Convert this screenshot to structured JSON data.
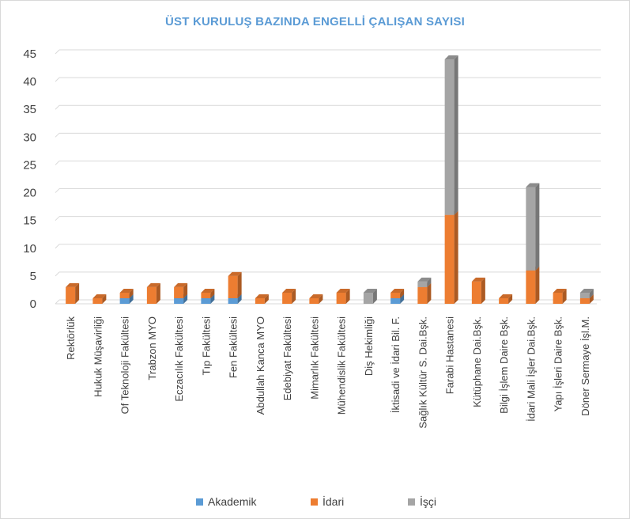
{
  "chart_data": {
    "type": "bar",
    "stacked": true,
    "title": "ÜST KURULUŞ BAZINDA ENGELLİ ÇALIŞAN SAYISI",
    "xlabel": "",
    "ylabel": "",
    "ylim": [
      0,
      45
    ],
    "yticks": [
      "0",
      "5",
      "10",
      "15",
      "20",
      "25",
      "30",
      "35",
      "40",
      "45"
    ],
    "grid": true,
    "legend_position": "bottom",
    "categories": [
      "Rektörlük",
      "Hukuk Müşavirliği",
      "Of Teknoloji Fakültesi",
      "Trabzon MYO",
      "Eczacılık Fakültesi",
      "Tıp Fakültesi",
      "Fen Fakültesi",
      "Abdullah Kanca MYO",
      "Edebiyat Fakültesi",
      "Mimarlık Fakültesi",
      "Mühendislik Fakültesi",
      "Diş Hekimliği",
      "İktisadi ve İdari Bil. F.",
      "Sağlık Kültür S. Dai.Bşk.",
      "Farabi Hastanesi",
      "Kütüphane Dai.Bşk.",
      "Bilgi İşlem Daire Bşk.",
      "İdari Mali İşler Dai.Bşk.",
      "Yapı İşleri Daire Bşk.",
      "Döner Sermaye İşl.M."
    ],
    "series": [
      {
        "name": "Akademik",
        "color": "#5b9bd5",
        "values": [
          0,
          0,
          1,
          0,
          1,
          1,
          1,
          0,
          0,
          0,
          0,
          0,
          1,
          0,
          0,
          0,
          0,
          0,
          0,
          0
        ]
      },
      {
        "name": "İdari",
        "color": "#ed7d31",
        "values": [
          3,
          1,
          1,
          3,
          2,
          1,
          4,
          1,
          2,
          1,
          2,
          0,
          1,
          3,
          16,
          4,
          1,
          6,
          2,
          1
        ]
      },
      {
        "name": "İşçi",
        "color": "#a5a5a5",
        "values": [
          0,
          0,
          0,
          0,
          0,
          0,
          0,
          0,
          0,
          0,
          0,
          2,
          0,
          1,
          28,
          0,
          0,
          15,
          0,
          1
        ]
      }
    ]
  }
}
